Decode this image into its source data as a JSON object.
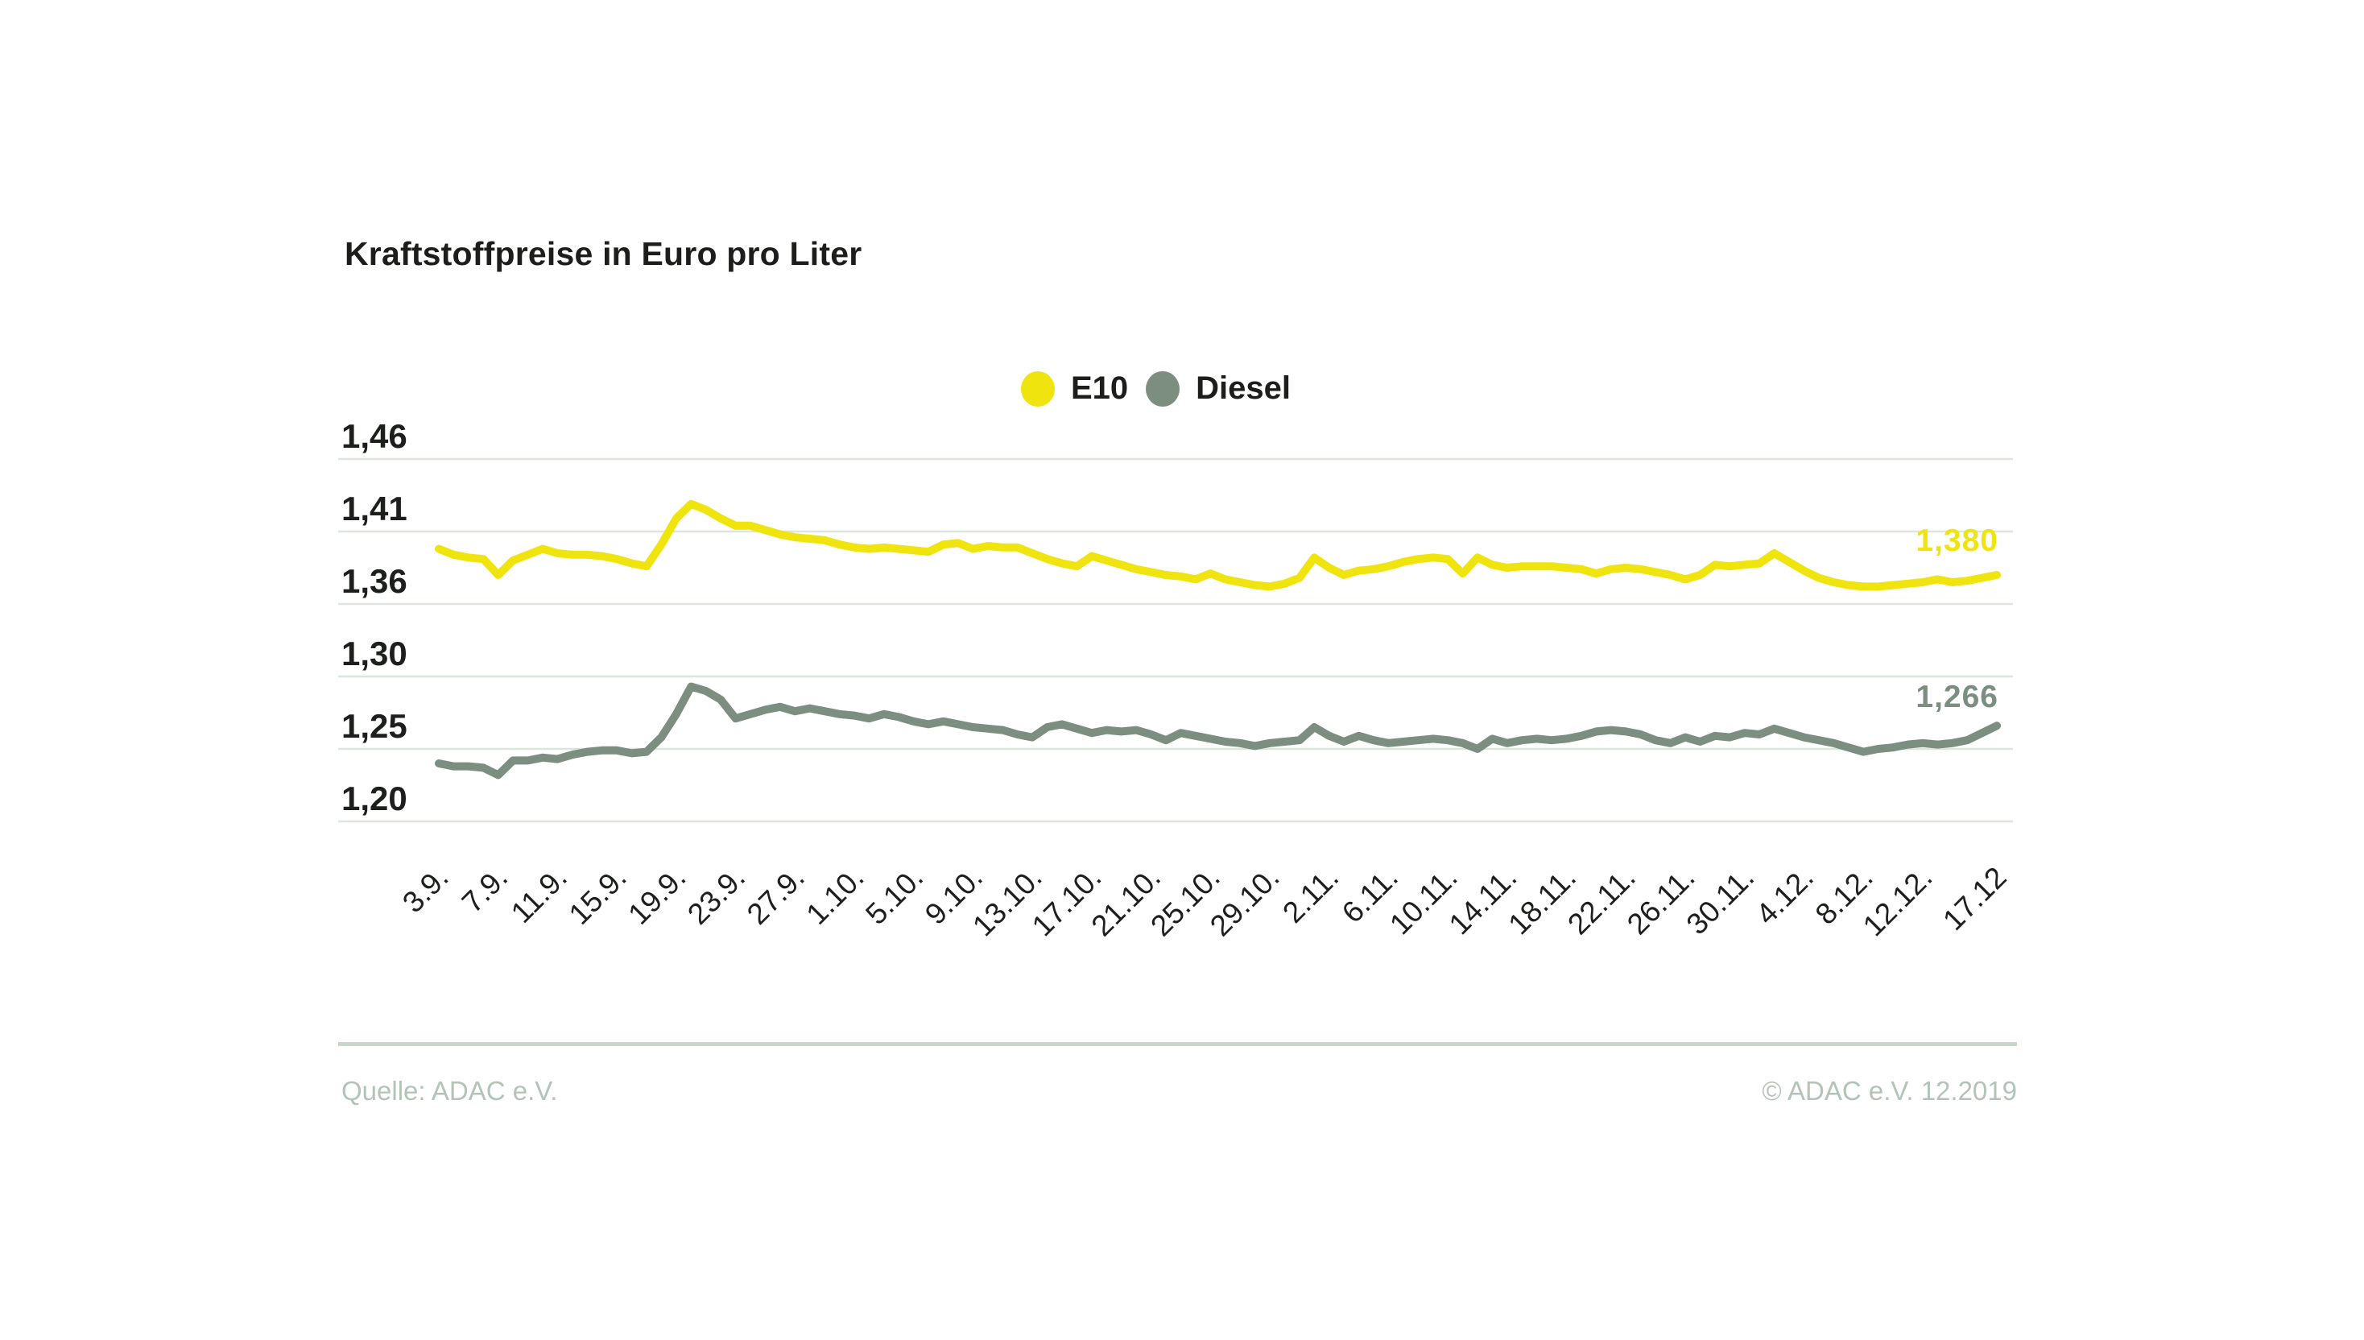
{
  "title": "Kraftstoffpreise in Euro pro Liter",
  "legend": [
    {
      "label": "E10",
      "color": "#f0e40e"
    },
    {
      "label": "Diesel",
      "color": "#7c8e80"
    }
  ],
  "footer": {
    "source": "Quelle: ADAC e.V.",
    "copyright": "© ADAC e.V. 12.2019"
  },
  "colors": {
    "background": "#ffffff",
    "gridline": "#dce5de",
    "axis_text": "#1d1f1d",
    "footer_rule": "#c9d7ca",
    "footer_text": "#b3c4b6",
    "e10": "#f0e40e",
    "diesel": "#7c8e80"
  },
  "chart_data": {
    "type": "line",
    "title": "Kraftstoffpreise in Euro pro Liter",
    "ylabel": "Euro pro Liter",
    "grid": true,
    "legend_position": "top-center",
    "broken_axis": true,
    "y_gridlines": [
      {
        "label": "1,46",
        "value": 1.46
      },
      {
        "label": "1,41",
        "value": 1.41
      },
      {
        "label": "1,36",
        "value": 1.36
      },
      {
        "label": "1,30",
        "value": 1.3
      },
      {
        "label": "1,25",
        "value": 1.25
      },
      {
        "label": "1,20",
        "value": 1.2
      }
    ],
    "x_tick_labels": [
      "3.9.",
      "7.9.",
      "11.9.",
      "15.9.",
      "19.9.",
      "23.9.",
      "27.9.",
      "1.10.",
      "5.10.",
      "9.10.",
      "13.10.",
      "17.10.",
      "21.10.",
      "25.10.",
      "29.10.",
      "2.11.",
      "6.11.",
      "10.11.",
      "14.11.",
      "18.11.",
      "22.11.",
      "26.11.",
      "30.11.",
      "4.12.",
      "8.12.",
      "12.12.",
      "17.12"
    ],
    "x_tick_day_indices": [
      0,
      4,
      8,
      12,
      16,
      20,
      24,
      28,
      32,
      36,
      40,
      44,
      48,
      52,
      56,
      60,
      64,
      68,
      72,
      76,
      80,
      84,
      88,
      92,
      96,
      100,
      105
    ],
    "x_range_note": "daily values from 3.9. to 17.12.",
    "series": [
      {
        "name": "E10",
        "color": "#f0e40e",
        "end_label": "1,380",
        "values": [
          1.398,
          1.394,
          1.392,
          1.391,
          1.38,
          1.39,
          1.394,
          1.398,
          1.395,
          1.394,
          1.394,
          1.393,
          1.391,
          1.388,
          1.386,
          1.401,
          1.419,
          1.429,
          1.425,
          1.419,
          1.414,
          1.414,
          1.411,
          1.408,
          1.406,
          1.405,
          1.404,
          1.401,
          1.399,
          1.398,
          1.399,
          1.398,
          1.397,
          1.396,
          1.401,
          1.402,
          1.398,
          1.4,
          1.399,
          1.399,
          1.395,
          1.391,
          1.388,
          1.386,
          1.393,
          1.39,
          1.387,
          1.384,
          1.382,
          1.38,
          1.379,
          1.377,
          1.381,
          1.377,
          1.375,
          1.373,
          1.372,
          1.374,
          1.378,
          1.392,
          1.385,
          1.38,
          1.383,
          1.384,
          1.386,
          1.389,
          1.391,
          1.392,
          1.391,
          1.381,
          1.392,
          1.387,
          1.385,
          1.386,
          1.386,
          1.386,
          1.385,
          1.384,
          1.381,
          1.384,
          1.385,
          1.384,
          1.382,
          1.38,
          1.377,
          1.38,
          1.387,
          1.386,
          1.387,
          1.388,
          1.395,
          1.389,
          1.383,
          1.378,
          1.375,
          1.373,
          1.372,
          1.372,
          1.373,
          1.374,
          1.375,
          1.377,
          1.375,
          1.376,
          1.378,
          1.38
        ]
      },
      {
        "name": "Diesel",
        "color": "#7c8e80",
        "end_label": "1,266",
        "values": [
          1.24,
          1.238,
          1.238,
          1.237,
          1.232,
          1.242,
          1.242,
          1.244,
          1.243,
          1.246,
          1.248,
          1.249,
          1.249,
          1.247,
          1.248,
          1.258,
          1.274,
          1.293,
          1.29,
          1.284,
          1.271,
          1.274,
          1.277,
          1.279,
          1.276,
          1.278,
          1.276,
          1.274,
          1.273,
          1.271,
          1.274,
          1.272,
          1.269,
          1.267,
          1.269,
          1.267,
          1.265,
          1.264,
          1.263,
          1.26,
          1.258,
          1.265,
          1.267,
          1.264,
          1.261,
          1.263,
          1.262,
          1.263,
          1.26,
          1.256,
          1.261,
          1.259,
          1.257,
          1.255,
          1.254,
          1.252,
          1.254,
          1.255,
          1.256,
          1.265,
          1.259,
          1.255,
          1.259,
          1.256,
          1.254,
          1.255,
          1.256,
          1.257,
          1.256,
          1.254,
          1.25,
          1.257,
          1.254,
          1.256,
          1.257,
          1.256,
          1.257,
          1.259,
          1.262,
          1.263,
          1.262,
          1.26,
          1.256,
          1.254,
          1.258,
          1.255,
          1.259,
          1.258,
          1.261,
          1.26,
          1.264,
          1.261,
          1.258,
          1.256,
          1.254,
          1.251,
          1.248,
          1.25,
          1.251,
          1.253,
          1.254,
          1.253,
          1.254,
          1.256,
          1.261,
          1.266
        ]
      }
    ]
  }
}
